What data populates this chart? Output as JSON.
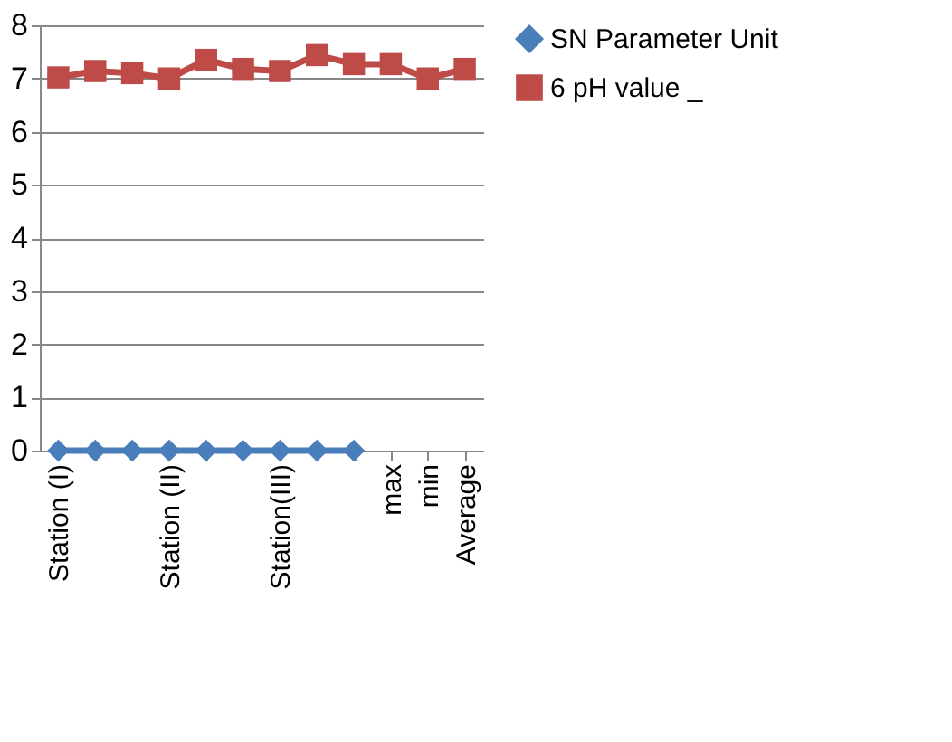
{
  "chart_data": {
    "type": "line",
    "categories": [
      "Station (I)",
      null,
      null,
      "Station (II)",
      null,
      null,
      "Station(III)",
      null,
      null,
      "max",
      "min",
      "Average"
    ],
    "series": [
      {
        "name": "SN Parameter Unit",
        "color": "#4a7ebb",
        "marker": "diamond",
        "values": [
          0,
          0,
          0,
          0,
          0,
          0,
          0,
          0,
          0,
          null,
          null,
          null
        ]
      },
      {
        "name": "6 pH value _",
        "color": "#be4b48",
        "marker": "square",
        "values": [
          7.02,
          7.14,
          7.1,
          7.0,
          7.35,
          7.18,
          7.14,
          7.44,
          7.27,
          7.27,
          7.0,
          7.18
        ]
      }
    ],
    "ylim": [
      0,
      8
    ],
    "yticks": [
      0,
      1,
      2,
      3,
      4,
      5,
      6,
      7,
      8
    ],
    "grid": "y",
    "legend": "right",
    "line_style": "solid"
  }
}
